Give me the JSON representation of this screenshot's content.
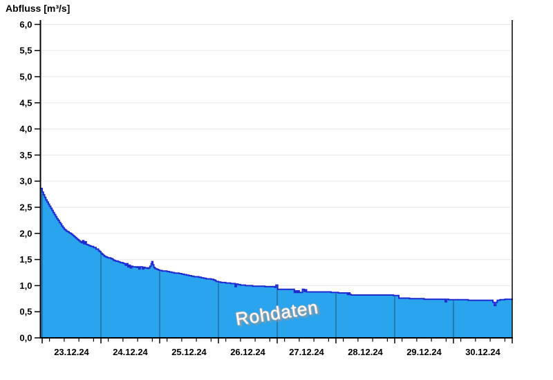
{
  "title": "Abfluss [m³/s]",
  "watermark": "Rohdaten",
  "chart_data": {
    "type": "area",
    "title": "Abfluss [m³/s]",
    "ylabel": "Abfluss [m³/s]",
    "xlabel": "",
    "ylim": [
      0,
      6
    ],
    "ytick_step": 0.5,
    "ytick_labels": [
      "0,0",
      "0,5",
      "1,0",
      "1,5",
      "2,0",
      "2,5",
      "3,0",
      "3,5",
      "4,0",
      "4,5",
      "5,0",
      "5,5",
      "6,0"
    ],
    "xtick_labels": [
      "23.12.24",
      "24.12.24",
      "25.12.24",
      "26.12.24",
      "27.12.24",
      "28.12.24",
      "29.12.24",
      "30.12.24"
    ],
    "x_unit": "hours since 23.12.24 00:00",
    "x_range_hours": [
      -0.6,
      192
    ],
    "days": 8,
    "minor_tick_hours_offsets": [
      3,
      9,
      15,
      21
    ],
    "grid": "horizontal, every 0.5, faint; vertical day lines visible inside filled area only",
    "legend_position": "none",
    "watermark_text": "Rohdaten",
    "colors": {
      "fill": "#2ba4ee",
      "line": "#1f2ad0",
      "grid": "#ebebeb",
      "day_line": "rgba(25,55,85,0.55)",
      "axis": "#000000",
      "background": "#ffffff",
      "watermark_text_color": "#ffffff",
      "watermark_shadow": "#989898"
    },
    "series": [
      {
        "name": "Rohdaten",
        "step": "after",
        "points": [
          [
            -0.6,
            2.86
          ],
          [
            0,
            2.79
          ],
          [
            0.5,
            2.74
          ],
          [
            1,
            2.69
          ],
          [
            1.5,
            2.64
          ],
          [
            2,
            2.6
          ],
          [
            2.5,
            2.56
          ],
          [
            3,
            2.52
          ],
          [
            3.5,
            2.48
          ],
          [
            4,
            2.44
          ],
          [
            4.5,
            2.4
          ],
          [
            5,
            2.36
          ],
          [
            5.5,
            2.32
          ],
          [
            6,
            2.28
          ],
          [
            6.5,
            2.25
          ],
          [
            7,
            2.21
          ],
          [
            7.5,
            2.18
          ],
          [
            8,
            2.14
          ],
          [
            8.5,
            2.11
          ],
          [
            9,
            2.08
          ],
          [
            9.5,
            2.06
          ],
          [
            10,
            2.04
          ],
          [
            10.5,
            2.03
          ],
          [
            11,
            2.01
          ],
          [
            11.5,
            2.0
          ],
          [
            12,
            1.98
          ],
          [
            12.5,
            1.96
          ],
          [
            13,
            1.94
          ],
          [
            13.5,
            1.92
          ],
          [
            14,
            1.9
          ],
          [
            14.5,
            1.88
          ],
          [
            15,
            1.86
          ],
          [
            15.5,
            1.84
          ],
          [
            16,
            1.82
          ],
          [
            16.5,
            1.86
          ],
          [
            17,
            1.8
          ],
          [
            17.5,
            1.84
          ],
          [
            18,
            1.79
          ],
          [
            18.5,
            1.78
          ],
          [
            19,
            1.77
          ],
          [
            19.5,
            1.76
          ],
          [
            20,
            1.75
          ],
          [
            21,
            1.73
          ],
          [
            22,
            1.7
          ],
          [
            23,
            1.67
          ],
          [
            23.5,
            1.65
          ],
          [
            24,
            1.62
          ],
          [
            24.5,
            1.6
          ],
          [
            25,
            1.58
          ],
          [
            25.5,
            1.56
          ],
          [
            26,
            1.55
          ],
          [
            26.5,
            1.54
          ],
          [
            27,
            1.53
          ],
          [
            28,
            1.52
          ],
          [
            28.5,
            1.51
          ],
          [
            29,
            1.49
          ],
          [
            29.5,
            1.48
          ],
          [
            30,
            1.47
          ],
          [
            31,
            1.46
          ],
          [
            31.5,
            1.45
          ],
          [
            32,
            1.44
          ],
          [
            33,
            1.43
          ],
          [
            33.5,
            1.42
          ],
          [
            34,
            1.39
          ],
          [
            34.5,
            1.42
          ],
          [
            35,
            1.36
          ],
          [
            35.5,
            1.39
          ],
          [
            36,
            1.34
          ],
          [
            36.5,
            1.37
          ],
          [
            37,
            1.36
          ],
          [
            38,
            1.36
          ],
          [
            38.5,
            1.35
          ],
          [
            39,
            1.36
          ],
          [
            39.5,
            1.32
          ],
          [
            40,
            1.36
          ],
          [
            40.5,
            1.36
          ],
          [
            41,
            1.32
          ],
          [
            41.5,
            1.35
          ],
          [
            42,
            1.34
          ],
          [
            42.5,
            1.34
          ],
          [
            43,
            1.33
          ],
          [
            43.5,
            1.34
          ],
          [
            44,
            1.37
          ],
          [
            44.5,
            1.42
          ],
          [
            44.8,
            1.46
          ],
          [
            45.2,
            1.4
          ],
          [
            45.6,
            1.35
          ],
          [
            46,
            1.33
          ],
          [
            46.5,
            1.32
          ],
          [
            47,
            1.31
          ],
          [
            47.5,
            1.3
          ],
          [
            48,
            1.29
          ],
          [
            49,
            1.28
          ],
          [
            50,
            1.28
          ],
          [
            51,
            1.27
          ],
          [
            52,
            1.26
          ],
          [
            53,
            1.25
          ],
          [
            54,
            1.24
          ],
          [
            55,
            1.24
          ],
          [
            56,
            1.23
          ],
          [
            57,
            1.22
          ],
          [
            58,
            1.21
          ],
          [
            59,
            1.2
          ],
          [
            60,
            1.19
          ],
          [
            61,
            1.18
          ],
          [
            62,
            1.17
          ],
          [
            63,
            1.17
          ],
          [
            64,
            1.16
          ],
          [
            65,
            1.15
          ],
          [
            66,
            1.14
          ],
          [
            67,
            1.13
          ],
          [
            68,
            1.13
          ],
          [
            69,
            1.12
          ],
          [
            70,
            1.11
          ],
          [
            70.5,
            1.1
          ],
          [
            71,
            1.08
          ],
          [
            72,
            1.07
          ],
          [
            73,
            1.06
          ],
          [
            74,
            1.06
          ],
          [
            75,
            1.05
          ],
          [
            76,
            1.05
          ],
          [
            77,
            1.04
          ],
          [
            78,
            1.04
          ],
          [
            78.8,
            0.98
          ],
          [
            79.3,
            1.03
          ],
          [
            80,
            1.02
          ],
          [
            81,
            1.01
          ],
          [
            82,
            1.01
          ],
          [
            83,
            1.0
          ],
          [
            84,
            1.0
          ],
          [
            85,
            1.0
          ],
          [
            86,
            0.99
          ],
          [
            87,
            0.99
          ],
          [
            88,
            0.99
          ],
          [
            89,
            0.99
          ],
          [
            90,
            0.99
          ],
          [
            91,
            0.98
          ],
          [
            92,
            0.98
          ],
          [
            93,
            0.98
          ],
          [
            94,
            0.98
          ],
          [
            95,
            0.97
          ],
          [
            95.5,
            1.01
          ],
          [
            96.2,
            0.93
          ],
          [
            97,
            0.93
          ],
          [
            98,
            0.93
          ],
          [
            99,
            0.93
          ],
          [
            100,
            0.93
          ],
          [
            101,
            0.93
          ],
          [
            102,
            0.93
          ],
          [
            103,
            0.87
          ],
          [
            103.5,
            0.9
          ],
          [
            104,
            0.87
          ],
          [
            104.5,
            0.9
          ],
          [
            105,
            0.87
          ],
          [
            105.7,
            0.87
          ],
          [
            106.3,
            0.93
          ],
          [
            107,
            0.89
          ],
          [
            107.5,
            0.92
          ],
          [
            108,
            0.88
          ],
          [
            109,
            0.88
          ],
          [
            110,
            0.88
          ],
          [
            112,
            0.88
          ],
          [
            114,
            0.88
          ],
          [
            116,
            0.88
          ],
          [
            118,
            0.87
          ],
          [
            119,
            0.87
          ],
          [
            120,
            0.87
          ],
          [
            121,
            0.86
          ],
          [
            122,
            0.86
          ],
          [
            123,
            0.86
          ],
          [
            124,
            0.86
          ],
          [
            124.7,
            0.83
          ],
          [
            125.2,
            0.86
          ],
          [
            125.7,
            0.83
          ],
          [
            126.2,
            0.82
          ],
          [
            127,
            0.82
          ],
          [
            128,
            0.82
          ],
          [
            130,
            0.82
          ],
          [
            132,
            0.82
          ],
          [
            134,
            0.82
          ],
          [
            136,
            0.82
          ],
          [
            138,
            0.82
          ],
          [
            140,
            0.82
          ],
          [
            142,
            0.82
          ],
          [
            143.5,
            0.81
          ],
          [
            144,
            0.81
          ],
          [
            145,
            0.81
          ],
          [
            145.7,
            0.76
          ],
          [
            146.5,
            0.76
          ],
          [
            148,
            0.76
          ],
          [
            150,
            0.75
          ],
          [
            152,
            0.75
          ],
          [
            154,
            0.75
          ],
          [
            156,
            0.74
          ],
          [
            158,
            0.74
          ],
          [
            160,
            0.74
          ],
          [
            162,
            0.74
          ],
          [
            164,
            0.74
          ],
          [
            164.6,
            0.69
          ],
          [
            165.2,
            0.74
          ],
          [
            166,
            0.73
          ],
          [
            167,
            0.73
          ],
          [
            168,
            0.73
          ],
          [
            170,
            0.73
          ],
          [
            172,
            0.73
          ],
          [
            174,
            0.72
          ],
          [
            176,
            0.72
          ],
          [
            178,
            0.72
          ],
          [
            180,
            0.72
          ],
          [
            182,
            0.72
          ],
          [
            183.5,
            0.72
          ],
          [
            184.1,
            0.68
          ],
          [
            184.7,
            0.62
          ],
          [
            185.3,
            0.68
          ],
          [
            185.9,
            0.72
          ],
          [
            187,
            0.73
          ],
          [
            188,
            0.73
          ],
          [
            189,
            0.74
          ],
          [
            190,
            0.74
          ],
          [
            191,
            0.74
          ],
          [
            192,
            0.75
          ]
        ]
      }
    ]
  }
}
